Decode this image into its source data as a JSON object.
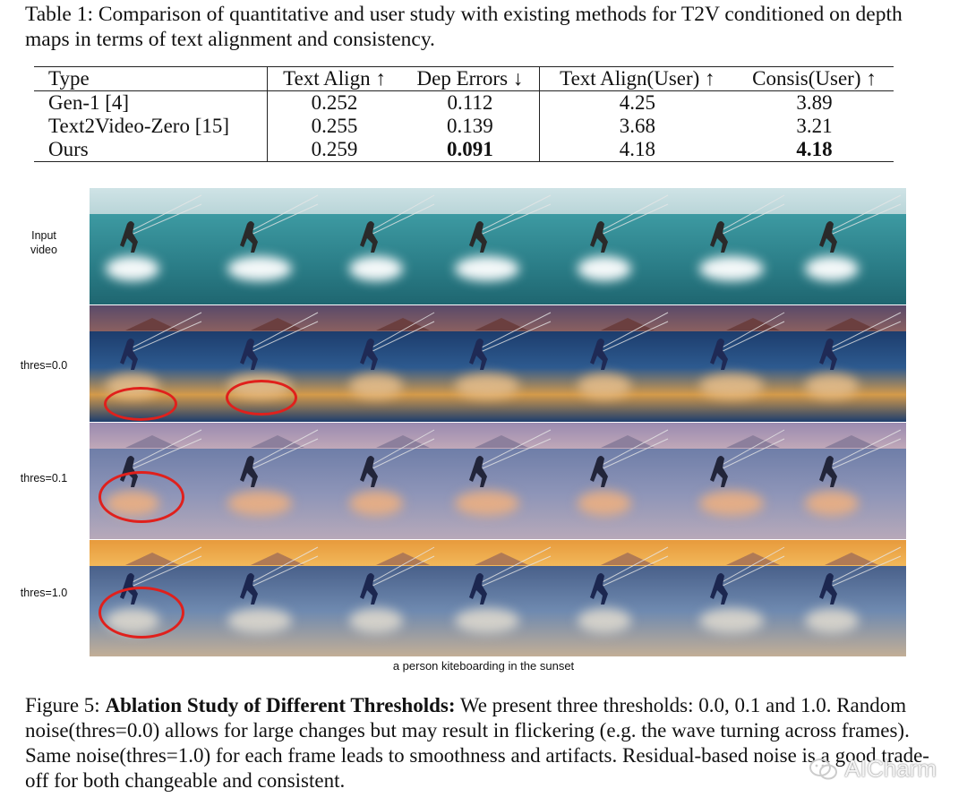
{
  "table_caption": "Table 1: Comparison of quantitative and user study with existing methods for T2V conditioned on depth maps in terms of text alignment and consistency.",
  "table": {
    "headers": [
      "Type",
      "Text Align ↑",
      "Dep Errors ↓",
      "Text Align(User) ↑",
      "Consis(User) ↑"
    ],
    "rows": [
      [
        "Gen-1 [4]",
        "0.252",
        "0.112",
        "4.25",
        "3.89"
      ],
      [
        "Text2Video-Zero [15]",
        "0.255",
        "0.139",
        "3.68",
        "3.21"
      ],
      [
        "Ours",
        "0.259",
        "0.091",
        "4.18",
        "4.18"
      ]
    ]
  },
  "figure": {
    "row_labels": [
      "Input\nvideo",
      "thres=0.0",
      "thres=0.1",
      "thres=1.0"
    ],
    "subcaption": "a person kiteboarding in the sunset",
    "frames_per_row": 7
  },
  "figure_caption": {
    "label": "Figure 5:",
    "title": "Ablation Study of Different Thresholds:",
    "body": "We present three thresholds: 0.0, 0.1 and 1.0. Random noise(thres=0.0) allows for large changes but may result in flickering (e.g. the wave turning across frames). Same noise(thres=1.0) for each frame leads to smoothness and artifacts. Residual-based noise is a good trade-off for both changeable and consistent."
  },
  "watermark": "AICharm",
  "colors": {
    "annotation_circle": "#e0201c"
  }
}
